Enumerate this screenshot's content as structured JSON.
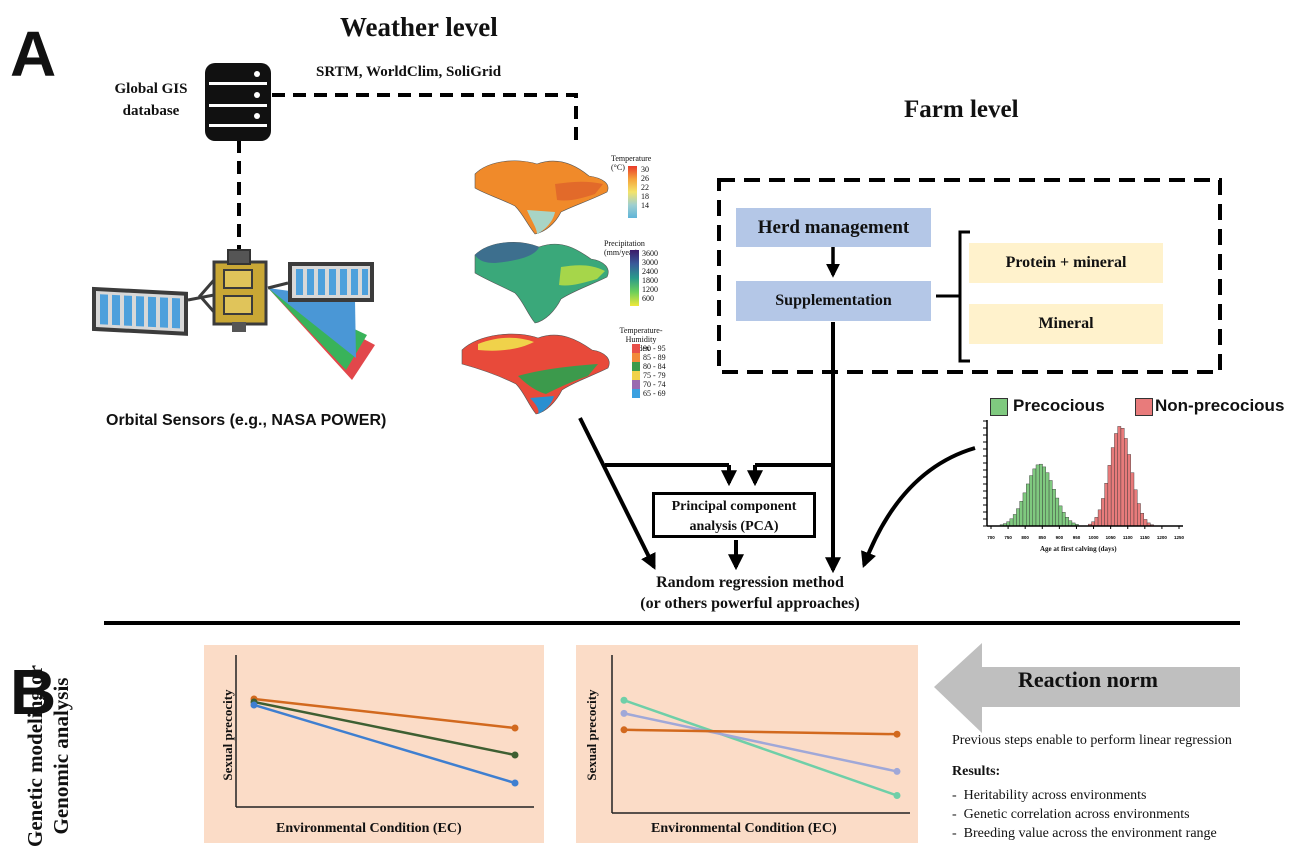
{
  "panel_a": {
    "letter": "A",
    "weather_level_title": "Weather level",
    "datasets": "SRTM, WorldClim, SoliGrid",
    "gis_label_line1": "Global GIS",
    "gis_label_line2": "database",
    "orbital_label": "Orbital Sensors (e.g., NASA POWER)",
    "farm_level_title": "Farm level",
    "herd_management": "Herd management",
    "supplementation": "Supplementation",
    "protein_mineral": "Protein + mineral",
    "mineral": "Mineral",
    "maps": {
      "temperature": {
        "title": "Temperature (°C)",
        "ticks": [
          "30",
          "26",
          "22",
          "18",
          "14"
        ]
      },
      "precipitation": {
        "title": "Precipitation (mm/year)",
        "ticks": [
          "3600",
          "3000",
          "2400",
          "1800",
          "1200",
          "600"
        ]
      },
      "thi": {
        "title_line1": "Temperature-Humidity",
        "title_line2": "index",
        "ticks": [
          "90 - 95",
          "85 - 89",
          "80 - 84",
          "75 - 79",
          "70 - 74",
          "65 - 69"
        ]
      }
    },
    "pca_line1": "Principal component",
    "pca_line2": "analysis (PCA)",
    "rr_line1": "Random regression method",
    "rr_line2": "(or others powerful approaches)",
    "histogram": {
      "legend_precocious": "Precocious",
      "legend_non_precocious": "Non-precocious",
      "xlabel": "Age at first calving (days)",
      "ticks": [
        "700",
        "750",
        "800",
        "850",
        "900",
        "950",
        "1000",
        "1050",
        "1100",
        "1150",
        "1200",
        "1250"
      ],
      "colors": {
        "precocious": "#7fc97f",
        "non_precocious": "#e87b7b"
      }
    }
  },
  "panel_b": {
    "letter": "B",
    "side_label_line1": "Genetic modeling or",
    "side_label_line2": "Genomic analysis",
    "reaction_norm": "Reaction norm",
    "steps_text": "Previous steps enable to perform linear regression",
    "results_title": "Results:",
    "results": [
      "Heritability across environments",
      "Genetic correlation across environments",
      "Breeding value across the environment range"
    ],
    "bullet": "-"
  },
  "chart_data": [
    {
      "type": "line",
      "xlabel": "Environmental Condition (EC)",
      "ylabel": "Sexual precocity",
      "x": [
        0,
        1
      ],
      "series": [
        {
          "values": [
            0.84,
            0.55
          ],
          "color": "#d2691e"
        },
        {
          "values": [
            0.81,
            0.28
          ],
          "color": "#3e5f32"
        },
        {
          "values": [
            0.78,
            0.0
          ],
          "color": "#3f7fd0"
        }
      ],
      "ylim": [
        -0.05,
        1.0
      ]
    },
    {
      "type": "line",
      "xlabel": "Environmental Condition (EC)",
      "ylabel": "Sexual precocity",
      "x": [
        0,
        1
      ],
      "series": [
        {
          "values": [
            0.87,
            0.0
          ],
          "color": "#6fcfa8"
        },
        {
          "values": [
            0.75,
            0.22
          ],
          "color": "#a0a8d8"
        },
        {
          "values": [
            0.6,
            0.56
          ],
          "color": "#d2691e"
        }
      ],
      "ylim": [
        -0.05,
        1.0
      ]
    }
  ]
}
